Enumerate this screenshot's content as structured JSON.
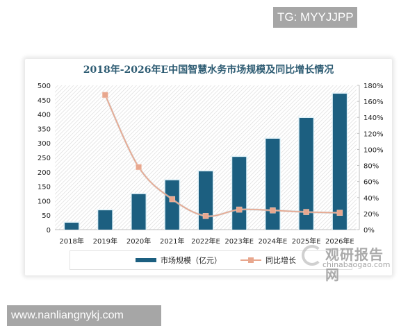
{
  "overlays": {
    "tg_label": "TG: MYYJJPP",
    "site_label": "www.nanliangnykj.com"
  },
  "chart": {
    "title": "2018年-2026年E中国智慧水务市场规模及同比增长情况",
    "legend": {
      "bar_label": "市场规模（亿元）",
      "line_label": "同比增长"
    },
    "watermark": {
      "cn": "观研报告网",
      "en": "chinabaogao.com"
    },
    "colors": {
      "bar": "#1c5f80",
      "line": "#e8a78e",
      "title": "#2e5c73"
    }
  },
  "chart_data": {
    "type": "bar",
    "title": "2018年-2026年E中国智慧水务市场规模及同比增长情况",
    "categories": [
      "2018年",
      "2019年",
      "2020年",
      "2021年",
      "2022年E",
      "2023年E",
      "2024年E",
      "2025年E",
      "2026年E"
    ],
    "series": [
      {
        "name": "市场规模（亿元）",
        "type": "bar",
        "axis": "left",
        "values": [
          24,
          67,
          123,
          171,
          202,
          252,
          315,
          387,
          471
        ]
      },
      {
        "name": "同比增长",
        "type": "line",
        "axis": "right",
        "values": [
          null,
          168,
          78,
          38,
          17,
          25,
          24,
          22,
          21
        ],
        "unit": "%"
      }
    ],
    "xlabel": "",
    "ylabel": "",
    "ylim": [
      0,
      500
    ],
    "yticks": [
      "0",
      "50",
      "100",
      "150",
      "200",
      "250",
      "300",
      "350",
      "400",
      "450",
      "500"
    ],
    "y2lim": [
      0,
      180
    ],
    "y2ticks": [
      "0%",
      "20%",
      "40%",
      "60%",
      "80%",
      "100%",
      "120%",
      "140%",
      "160%",
      "180%"
    ],
    "grid": false,
    "legend_position": "bottom"
  }
}
